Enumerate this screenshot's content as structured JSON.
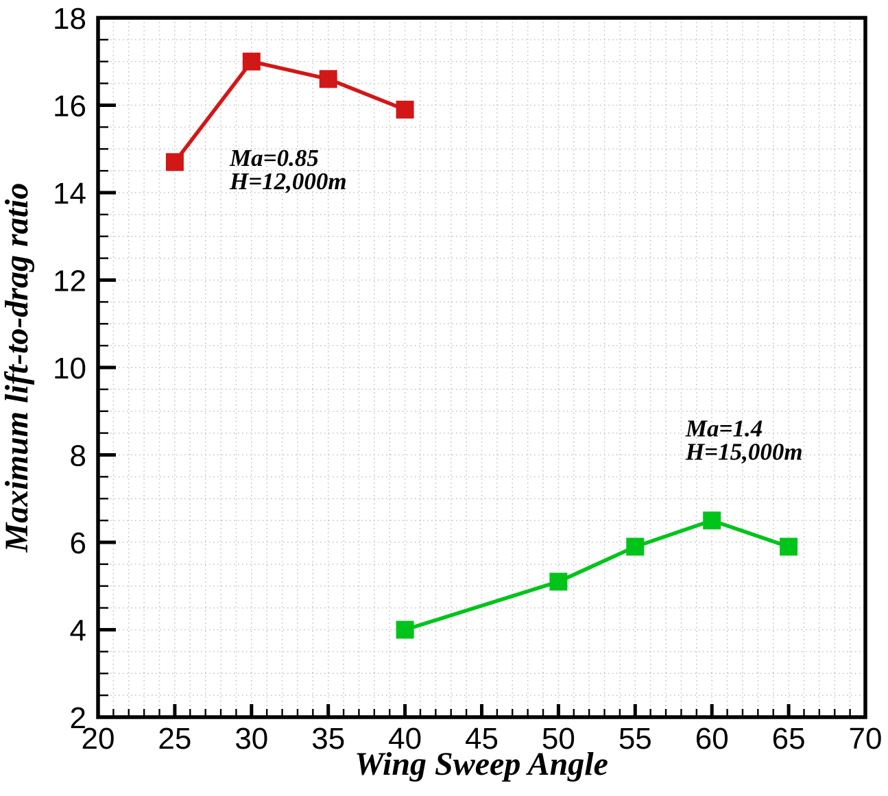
{
  "chart_data": {
    "type": "line",
    "xlabel": "Wing Sweep Angle",
    "ylabel": "Maximum lift-to-drag ratio",
    "xlim": [
      20,
      70
    ],
    "ylim": [
      2,
      18
    ],
    "x_tick_labels": [
      "20",
      "25",
      "30",
      "35",
      "40",
      "45",
      "50",
      "55",
      "60",
      "65",
      "70"
    ],
    "y_tick_labels": [
      "2",
      "4",
      "6",
      "8",
      "10",
      "12",
      "14",
      "16",
      "18"
    ],
    "x_major_step": 5,
    "x_minor_step": 1,
    "y_major_step": 2,
    "y_minor_step": 0.5,
    "grid": "dotted-minor",
    "legend_position": "none",
    "series": [
      {
        "name": "Ma=0.85, H=12,000m",
        "color": "#d21717",
        "marker": "square",
        "x": [
          25,
          30,
          35,
          40
        ],
        "y": [
          14.7,
          17.0,
          16.6,
          15.9
        ],
        "annotation": {
          "lines": [
            "Ma=0.85",
            "H=12,000m"
          ],
          "anchor_x": 28.58,
          "anchor_y": 14.61
        }
      },
      {
        "name": "Ma=1.4, H=15,000m",
        "color": "#00c41a",
        "marker": "square",
        "x": [
          40,
          50,
          55,
          60,
          65
        ],
        "y": [
          4.0,
          5.1,
          5.9,
          6.5,
          5.9
        ],
        "annotation": {
          "lines": [
            "Ma=1.4",
            "H=15,000m"
          ],
          "anchor_x": 58.29,
          "anchor_y": 8.42
        }
      }
    ],
    "colors": {
      "axis": "#000000",
      "grid": "#c3c3c3",
      "text": "#000000",
      "background": "#ffffff"
    }
  }
}
